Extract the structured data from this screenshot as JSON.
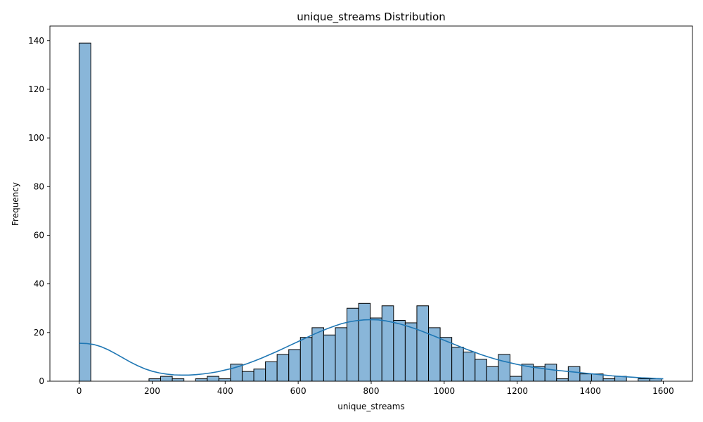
{
  "chart_data": {
    "type": "bar",
    "title": "unique_streams Distribution",
    "xlabel": "unique_streams",
    "ylabel": "Frequency",
    "xlim": [
      -80,
      1680
    ],
    "ylim": [
      0,
      146
    ],
    "x_ticks": [
      0,
      200,
      400,
      600,
      800,
      1000,
      1200,
      1400,
      1600
    ],
    "y_ticks": [
      0,
      20,
      40,
      60,
      80,
      100,
      120,
      140
    ],
    "bin_width": 31.9,
    "bin_start": 0,
    "counts": [
      139,
      0,
      0,
      0,
      0,
      0,
      1,
      2,
      1,
      0,
      1,
      2,
      1,
      7,
      4,
      5,
      8,
      11,
      13,
      18,
      22,
      19,
      22,
      30,
      32,
      26,
      31,
      25,
      24,
      31,
      22,
      18,
      14,
      12,
      9,
      6,
      11,
      2,
      7,
      6,
      7,
      1,
      6,
      3,
      3,
      1,
      2,
      0,
      1,
      1
    ],
    "bar_color": "#89b6d9",
    "edge_color": "#000000",
    "kde": {
      "color": "#1f77b4",
      "x": [
        0,
        20,
        40,
        60,
        80,
        100,
        120,
        140,
        160,
        180,
        200,
        220,
        240,
        260,
        280,
        300,
        320,
        340,
        360,
        380,
        400,
        420,
        440,
        460,
        480,
        500,
        520,
        540,
        560,
        580,
        600,
        620,
        640,
        660,
        680,
        700,
        720,
        740,
        760,
        780,
        800,
        820,
        840,
        860,
        880,
        900,
        920,
        940,
        960,
        980,
        1000,
        1020,
        1040,
        1060,
        1080,
        1100,
        1120,
        1140,
        1160,
        1180,
        1200,
        1220,
        1240,
        1260,
        1280,
        1300,
        1320,
        1340,
        1360,
        1380,
        1400,
        1420,
        1440,
        1460,
        1480,
        1500,
        1520,
        1540,
        1560,
        1580,
        1600
      ],
      "y": [
        15.6,
        15.5,
        15.1,
        14.2,
        12.9,
        11.3,
        9.6,
        7.9,
        6.4,
        5.1,
        4.1,
        3.4,
        2.9,
        2.6,
        2.5,
        2.5,
        2.7,
        3.0,
        3.4,
        3.9,
        4.6,
        5.3,
        6.2,
        7.2,
        8.3,
        9.5,
        10.8,
        12.1,
        13.5,
        14.9,
        16.3,
        17.7,
        19.1,
        20.4,
        21.6,
        22.7,
        23.7,
        24.4,
        24.9,
        25.2,
        25.3,
        25.2,
        24.8,
        24.2,
        23.5,
        22.6,
        21.6,
        20.5,
        19.3,
        18.1,
        16.8,
        15.6,
        14.4,
        13.2,
        12.1,
        11.0,
        10.0,
        9.1,
        8.3,
        7.6,
        6.9,
        6.3,
        5.8,
        5.4,
        5.0,
        4.6,
        4.3,
        4.0,
        3.7,
        3.4,
        3.1,
        2.8,
        2.5,
        2.2,
        2.0,
        1.8,
        1.6,
        1.4,
        1.3,
        1.1,
        1.0
      ]
    }
  }
}
